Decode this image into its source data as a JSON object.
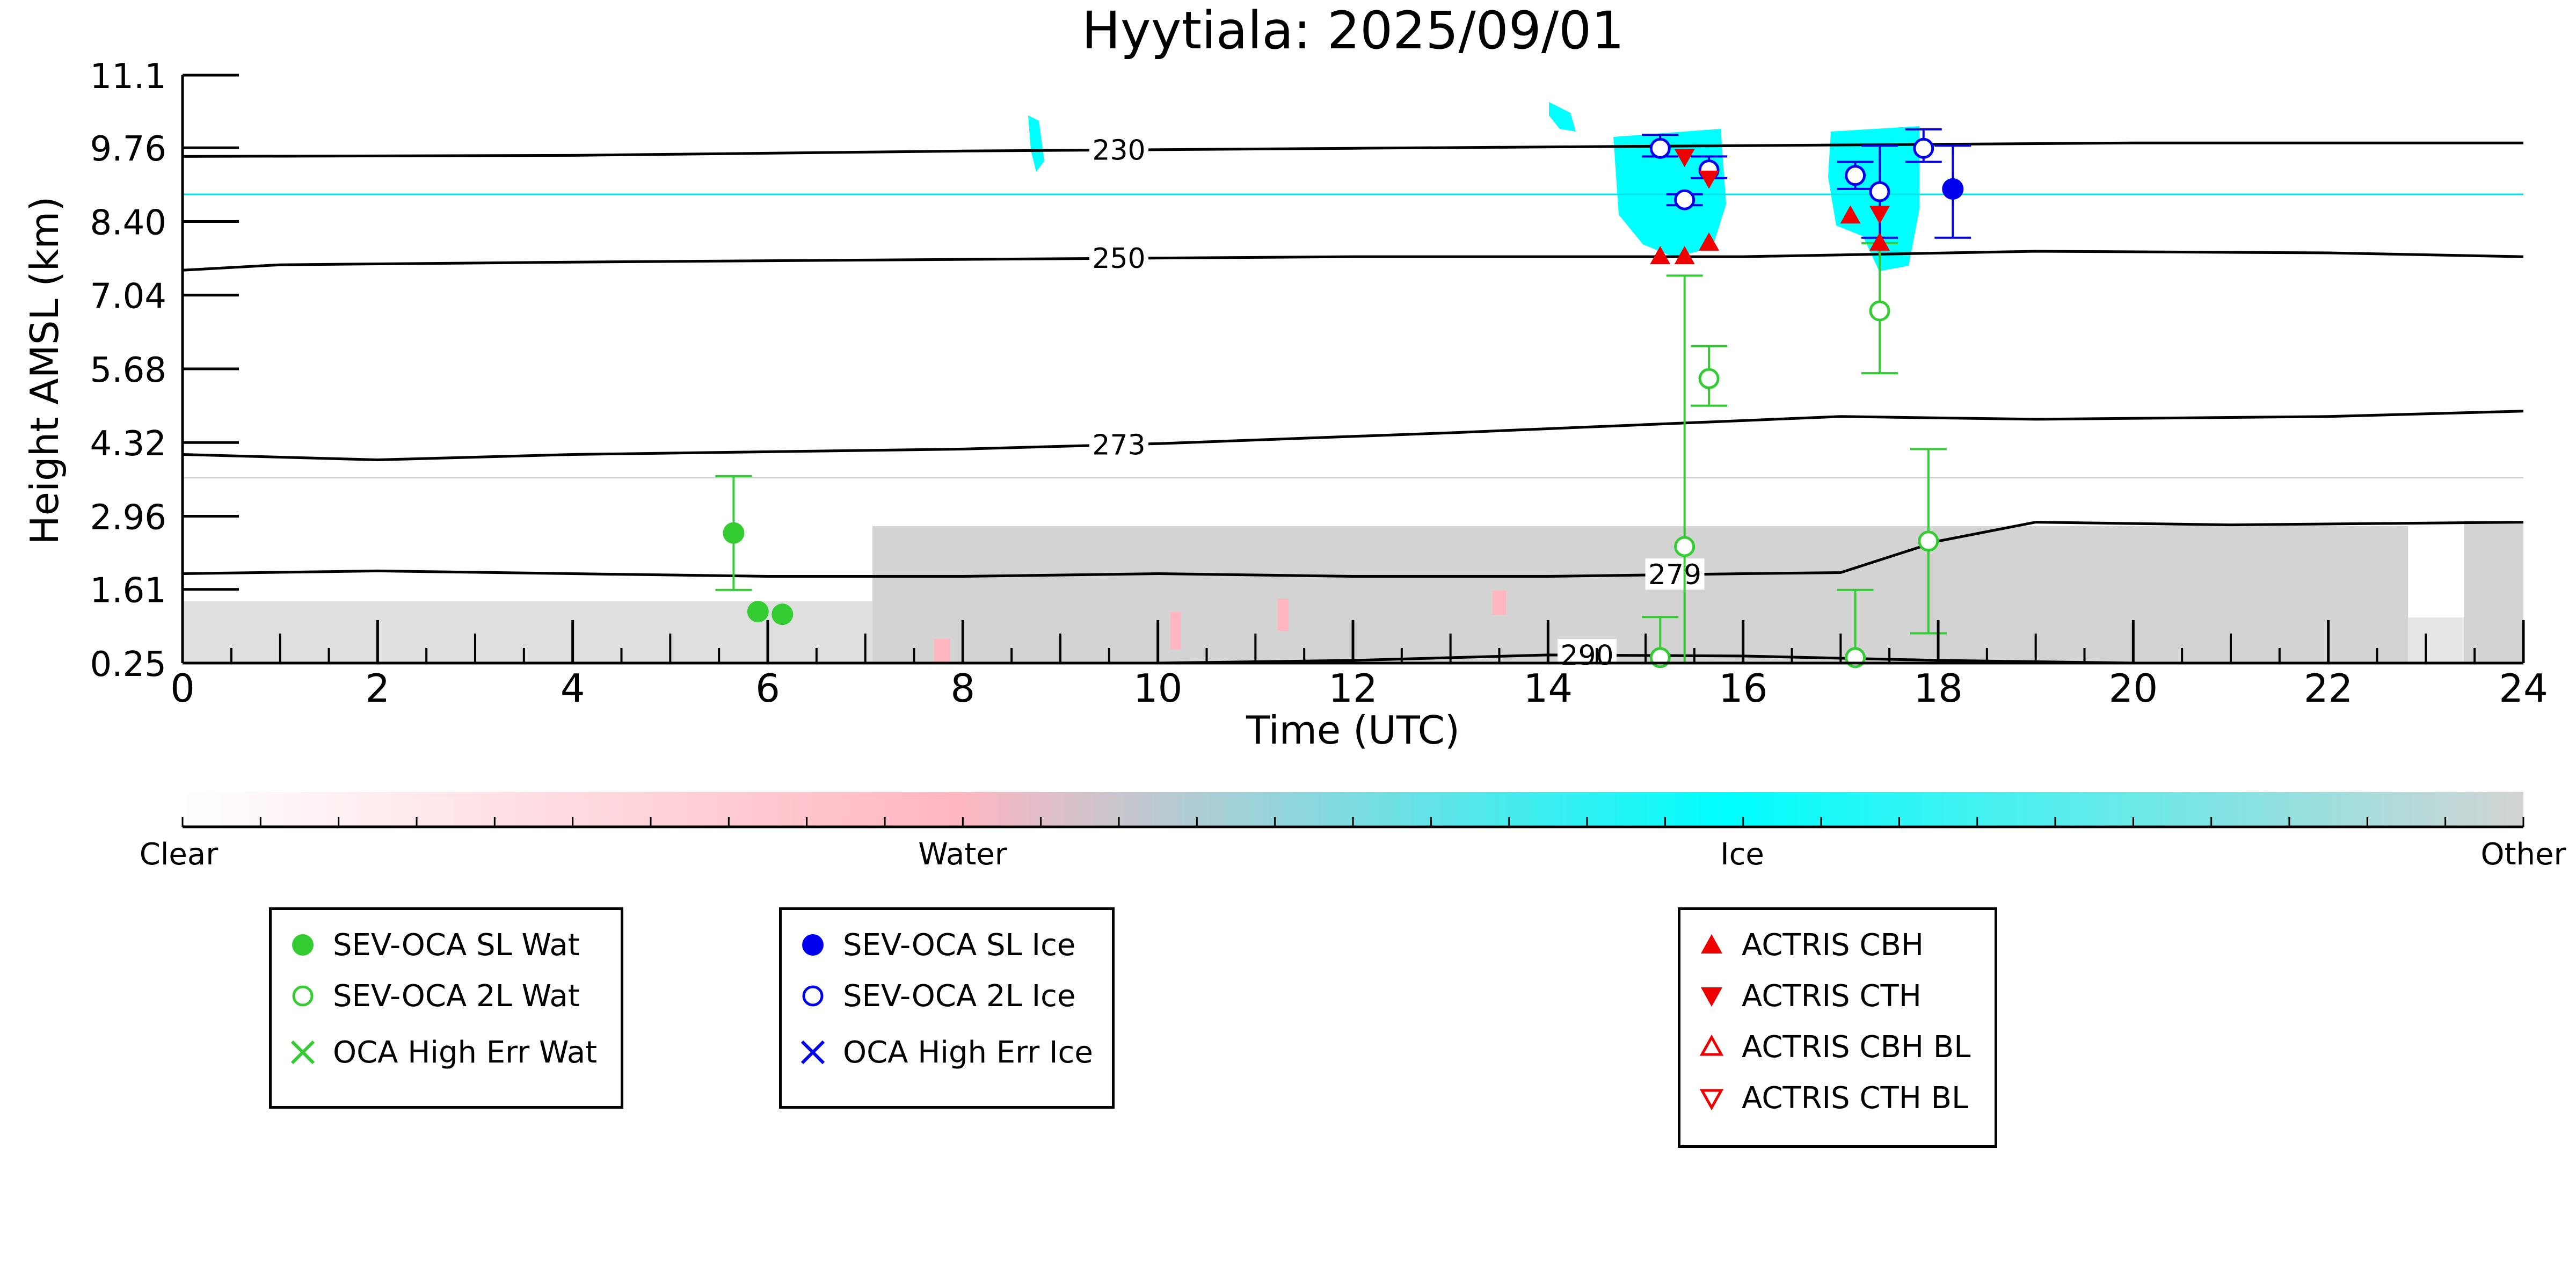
{
  "chart_data": {
    "type": "scatter",
    "title": "Hyytiala: 2025/09/01",
    "xlabel": "Time (UTC)",
    "ylabel": "Height AMSL (km)",
    "xlim": [
      0,
      24
    ],
    "ylim": [
      0.25,
      11.1
    ],
    "xticks": [
      "0",
      "2",
      "4",
      "6",
      "8",
      "10",
      "12",
      "14",
      "16",
      "18",
      "20",
      "22",
      "24"
    ],
    "yticks": [
      "0.25",
      "1.61",
      "2.96",
      "4.32",
      "5.68",
      "7.04",
      "8.40",
      "9.76",
      "11.1"
    ],
    "temperature_contours": [
      {
        "label": "230",
        "points": [
          [
            0,
            9.6
          ],
          [
            4,
            9.62
          ],
          [
            8,
            9.7
          ],
          [
            12,
            9.75
          ],
          [
            16,
            9.8
          ],
          [
            20,
            9.85
          ],
          [
            24,
            9.85
          ]
        ]
      },
      {
        "label": "250",
        "points": [
          [
            0,
            7.5
          ],
          [
            1,
            7.6
          ],
          [
            4,
            7.65
          ],
          [
            8,
            7.7
          ],
          [
            12,
            7.75
          ],
          [
            16,
            7.75
          ],
          [
            19,
            7.85
          ],
          [
            22,
            7.82
          ],
          [
            24,
            7.75
          ]
        ]
      },
      {
        "label": "273",
        "points": [
          [
            0,
            4.1
          ],
          [
            2,
            4.0
          ],
          [
            4,
            4.1
          ],
          [
            8,
            4.2
          ],
          [
            10,
            4.3
          ],
          [
            13,
            4.5
          ],
          [
            15,
            4.65
          ],
          [
            17,
            4.8
          ],
          [
            19,
            4.75
          ],
          [
            22,
            4.8
          ],
          [
            24,
            4.9
          ]
        ]
      },
      {
        "label": "279",
        "points": [
          [
            0,
            1.9
          ],
          [
            2,
            1.95
          ],
          [
            4,
            1.9
          ],
          [
            6,
            1.85
          ],
          [
            8,
            1.85
          ],
          [
            10,
            1.9
          ],
          [
            12,
            1.85
          ],
          [
            14,
            1.85
          ],
          [
            16,
            1.9
          ],
          [
            17,
            1.92
          ],
          [
            18,
            2.5
          ],
          [
            19,
            2.85
          ],
          [
            21,
            2.8
          ],
          [
            24,
            2.85
          ]
        ]
      },
      {
        "label": "290",
        "points": [
          [
            10,
            0.25
          ],
          [
            12,
            0.3
          ],
          [
            14,
            0.4
          ],
          [
            16,
            0.38
          ],
          [
            18,
            0.3
          ],
          [
            20,
            0.25
          ]
        ]
      }
    ],
    "cyan_reference_line_km": 8.85,
    "grey_reference_line_km": 3.6,
    "series": [
      {
        "name": "SEV-OCA SL Wat",
        "color": "#33cc33",
        "marker": "filled-circle",
        "points": [
          {
            "x": 5.65,
            "y": 2.65,
            "err": [
              1.6,
              3.7
            ]
          },
          {
            "x": 5.9,
            "y": 1.2,
            "err": null
          },
          {
            "x": 6.15,
            "y": 1.15,
            "err": null
          }
        ]
      },
      {
        "name": "SEV-OCA 2L Wat",
        "color": "#33cc33",
        "marker": "open-circle",
        "points": [
          {
            "x": 15.15,
            "y": 0.35,
            "err": [
              0.25,
              1.1
            ]
          },
          {
            "x": 15.4,
            "y": 2.4,
            "err": [
              0.25,
              7.4
            ]
          },
          {
            "x": 15.65,
            "y": 5.5,
            "err": [
              5.0,
              6.1
            ]
          },
          {
            "x": 17.15,
            "y": 0.35,
            "err": [
              0.25,
              1.6
            ]
          },
          {
            "x": 17.4,
            "y": 6.75,
            "err": [
              5.6,
              8.0
            ]
          },
          {
            "x": 17.9,
            "y": 2.5,
            "err": [
              0.8,
              4.2
            ]
          }
        ]
      },
      {
        "name": "OCA High Err Wat",
        "color": "#33cc33",
        "marker": "x",
        "points": []
      },
      {
        "name": "SEV-OCA SL Ice",
        "color": "#0000ee",
        "marker": "filled-circle",
        "points": [
          {
            "x": 18.15,
            "y": 9.0,
            "err": [
              8.1,
              9.8
            ]
          }
        ]
      },
      {
        "name": "SEV-OCA 2L Ice",
        "color": "#0000ee",
        "marker": "open-circle",
        "points": [
          {
            "x": 15.15,
            "y": 9.75,
            "err": [
              9.6,
              10.0
            ]
          },
          {
            "x": 15.4,
            "y": 8.8,
            "err": [
              8.7,
              8.9
            ]
          },
          {
            "x": 15.65,
            "y": 9.35,
            "err": [
              9.2,
              9.6
            ]
          },
          {
            "x": 17.15,
            "y": 9.25,
            "err": [
              9.0,
              9.5
            ]
          },
          {
            "x": 17.4,
            "y": 8.95,
            "err": [
              8.1,
              9.8
            ]
          },
          {
            "x": 17.85,
            "y": 9.75,
            "err": [
              9.5,
              10.1
            ]
          }
        ]
      },
      {
        "name": "OCA High Err Ice",
        "color": "#0000ee",
        "marker": "x",
        "points": []
      },
      {
        "name": "ACTRIS CBH",
        "color": "#ee0000",
        "marker": "triangle-up",
        "points": [
          {
            "x": 15.15,
            "y": 7.75
          },
          {
            "x": 15.4,
            "y": 7.75
          },
          {
            "x": 15.65,
            "y": 8.0
          },
          {
            "x": 17.1,
            "y": 8.5
          },
          {
            "x": 17.4,
            "y": 8.0
          }
        ]
      },
      {
        "name": "ACTRIS CTH",
        "color": "#ee0000",
        "marker": "triangle-down",
        "points": [
          {
            "x": 15.4,
            "y": 9.6
          },
          {
            "x": 15.65,
            "y": 9.2
          },
          {
            "x": 17.4,
            "y": 8.55
          }
        ]
      },
      {
        "name": "ACTRIS CBH BL",
        "color": "#ee0000",
        "marker": "open-triangle-up",
        "points": []
      },
      {
        "name": "ACTRIS CTH BL",
        "color": "#ee0000",
        "marker": "open-triangle-down",
        "points": []
      }
    ],
    "colorbar": {
      "labels": [
        "Clear",
        "Water",
        "Ice",
        "Other"
      ],
      "colors": [
        "#ffffff",
        "#ffb6c1",
        "#00ffff",
        "#d3d3d3"
      ]
    },
    "legend_groups": [
      [
        "SEV-OCA SL Wat",
        "SEV-OCA 2L Wat",
        "OCA High Err Wat"
      ],
      [
        "SEV-OCA SL Ice",
        "SEV-OCA 2L Ice",
        "OCA High Err Ice"
      ],
      [
        "ACTRIS CBH",
        "ACTRIS CTH",
        "ACTRIS CBH BL",
        "ACTRIS CTH BL"
      ]
    ]
  }
}
